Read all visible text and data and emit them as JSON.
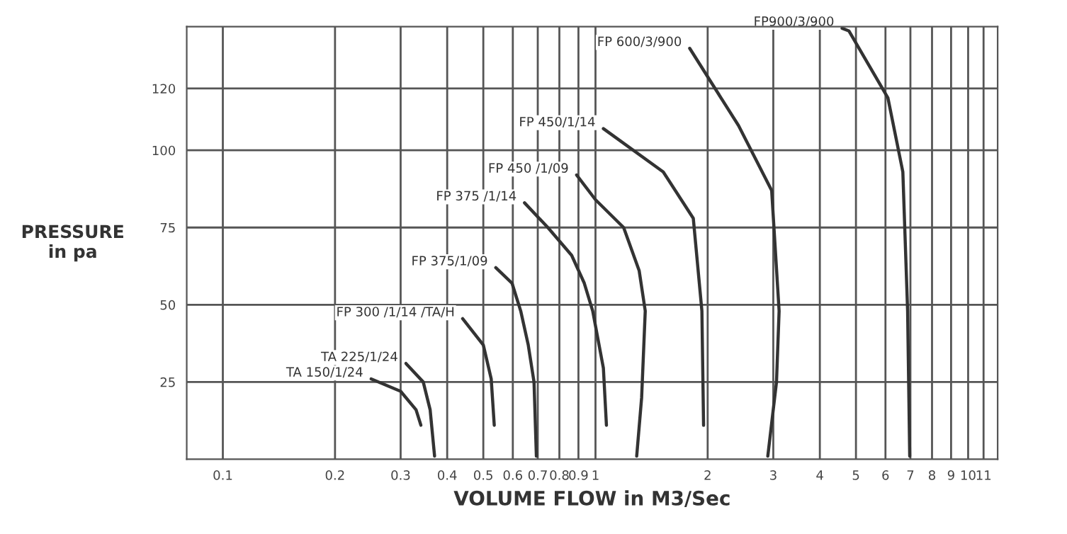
{
  "chart_data": {
    "type": "line",
    "xlabel": "VOLUME FLOW in M3/Sec",
    "ylabel": "PRESSURE\nin pa",
    "log": "x",
    "xlim": [
      0.08,
      12
    ],
    "xticks": [
      0.1,
      0.2,
      0.3,
      0.4,
      0.5,
      0.6,
      0.7,
      0.8,
      0.9,
      1,
      2,
      3,
      4,
      5,
      6,
      7,
      8,
      9,
      10,
      11
    ],
    "ylim": [
      0,
      140
    ],
    "yticks": [
      25,
      50,
      75,
      100,
      120
    ],
    "grid": true,
    "marker": "none",
    "line_style": "solid",
    "series": [
      {
        "name": "TA 150/1/24",
        "color": "#333333",
        "x": [
          0.25,
          0.3,
          0.33,
          0.34
        ],
        "values": [
          26,
          22,
          16,
          11
        ]
      },
      {
        "name": "TA 225/1/24",
        "color": "#333333",
        "x": [
          0.31,
          0.345,
          0.36,
          0.37
        ],
        "values": [
          31,
          25,
          16,
          1
        ]
      },
      {
        "name": "FP 300 /1/14 /TA/H",
        "color": "#333333",
        "x": [
          0.44,
          0.5,
          0.525,
          0.535
        ],
        "values": [
          45.5,
          37,
          26,
          11
        ]
      },
      {
        "name": "FP 375/1/09",
        "color": "#333333",
        "x": [
          0.54,
          0.597,
          0.63,
          0.66,
          0.684,
          0.694
        ],
        "values": [
          62,
          57,
          48,
          37,
          25,
          1
        ]
      },
      {
        "name": "FP 375 /1/14",
        "color": "#333333",
        "x": [
          0.645,
          0.745,
          0.863,
          0.933,
          0.983,
          1.05,
          1.07
        ],
        "values": [
          83,
          75,
          66,
          57,
          48,
          29.5,
          11
        ]
      },
      {
        "name": "FP 450 /1/09",
        "color": "#333333",
        "x": [
          0.89,
          1.0,
          1.19,
          1.31,
          1.36,
          1.33,
          1.29
        ],
        "values": [
          92,
          84,
          75,
          61,
          48,
          20,
          1
        ]
      },
      {
        "name": "FP 450/1/14",
        "color": "#333333",
        "x": [
          1.05,
          1.52,
          1.83,
          1.93,
          1.95
        ],
        "values": [
          107,
          93,
          78,
          48,
          11
        ]
      },
      {
        "name": "FP 600/3/900",
        "color": "#333333",
        "x": [
          1.79,
          2.42,
          2.97,
          3.11,
          3.06,
          2.9
        ],
        "values": [
          133,
          108,
          87,
          48,
          25,
          1
        ]
      },
      {
        "name": "FP900/3/900",
        "color": "#333333",
        "x": [
          4.59,
          4.79,
          6.09,
          6.68,
          6.88,
          6.97
        ],
        "values": [
          139.5,
          138.6,
          117,
          93,
          48,
          1
        ]
      }
    ]
  }
}
